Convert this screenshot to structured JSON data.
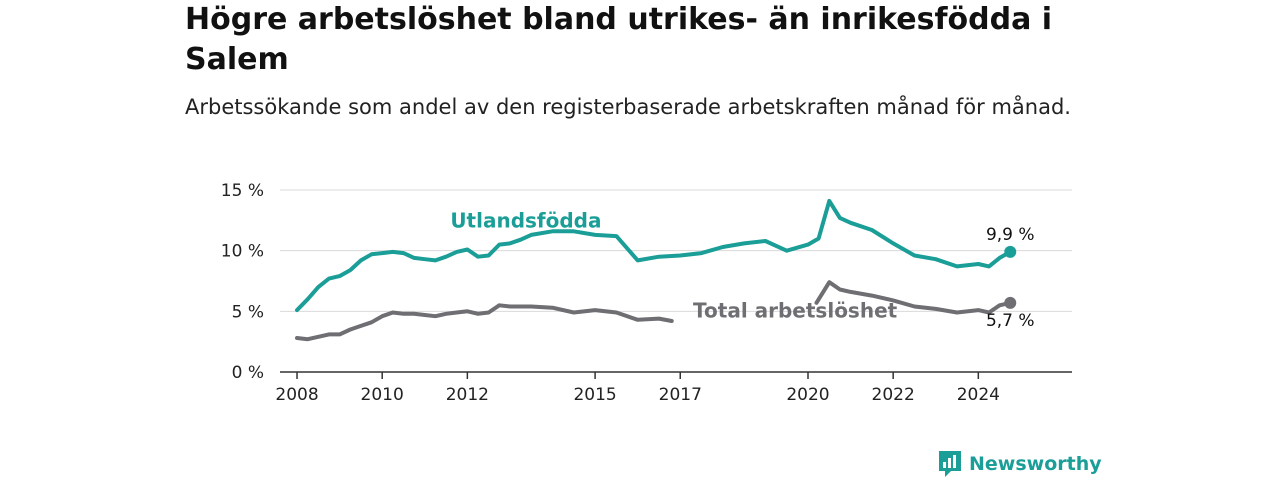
{
  "header": {
    "title": "Högre arbetslöshet bland utrikes- än inrikesfödda i Salem",
    "subtitle": "Arbetssökande som andel av den registerbaserade arbetskraften månad för månad."
  },
  "brand": {
    "name": "Newsworthy",
    "color": "#1a9e97"
  },
  "chart_data": {
    "type": "line",
    "ylim": [
      0,
      15
    ],
    "yticks": [
      0,
      5,
      10,
      15
    ],
    "ytick_labels": [
      "0 %",
      "5 %",
      "10 %",
      "15 %"
    ],
    "xticks": [
      2008,
      2010,
      2012,
      2015,
      2017,
      2020,
      2022,
      2024
    ],
    "xtick_labels": [
      "2008",
      "2010",
      "2012",
      "2015",
      "2017",
      "2020",
      "2022",
      "2024"
    ],
    "grid": true,
    "series": [
      {
        "name": "Utlandsfödda",
        "color": "#1a9e97",
        "end_label": "9,9 %",
        "points": [
          [
            2008.0,
            5.1
          ],
          [
            2008.25,
            6.0
          ],
          [
            2008.5,
            7.0
          ],
          [
            2008.75,
            7.7
          ],
          [
            2009.0,
            7.9
          ],
          [
            2009.25,
            8.4
          ],
          [
            2009.5,
            9.2
          ],
          [
            2009.75,
            9.7
          ],
          [
            2010.0,
            9.8
          ],
          [
            2010.25,
            9.9
          ],
          [
            2010.5,
            9.8
          ],
          [
            2010.75,
            9.4
          ],
          [
            2011.0,
            9.3
          ],
          [
            2011.25,
            9.2
          ],
          [
            2011.5,
            9.5
          ],
          [
            2011.75,
            9.9
          ],
          [
            2012.0,
            10.1
          ],
          [
            2012.25,
            9.5
          ],
          [
            2012.5,
            9.6
          ],
          [
            2012.75,
            10.5
          ],
          [
            2013.0,
            10.6
          ],
          [
            2013.25,
            10.9
          ],
          [
            2013.5,
            11.3
          ],
          [
            2014.0,
            11.6
          ],
          [
            2014.5,
            11.6
          ],
          [
            2015.0,
            11.3
          ],
          [
            2015.5,
            11.2
          ],
          [
            2016.0,
            9.2
          ],
          [
            2016.5,
            9.5
          ],
          [
            2017.0,
            9.6
          ],
          [
            2017.5,
            9.8
          ],
          [
            2018.0,
            10.3
          ],
          [
            2018.5,
            10.6
          ],
          [
            2019.0,
            10.8
          ],
          [
            2019.5,
            10.0
          ],
          [
            2020.0,
            10.5
          ],
          [
            2020.25,
            11.0
          ],
          [
            2020.5,
            14.1
          ],
          [
            2020.75,
            12.7
          ],
          [
            2021.0,
            12.3
          ],
          [
            2021.5,
            11.7
          ],
          [
            2022.0,
            10.6
          ],
          [
            2022.5,
            9.6
          ],
          [
            2023.0,
            9.3
          ],
          [
            2023.5,
            8.7
          ],
          [
            2024.0,
            8.9
          ],
          [
            2024.25,
            8.7
          ],
          [
            2024.5,
            9.4
          ],
          [
            2024.75,
            9.9
          ]
        ]
      },
      {
        "name": "Total arbetslöshet",
        "color": "#6e6e73",
        "end_label": "5,7 %",
        "segments": [
          [
            [
              2008.0,
              2.8
            ],
            [
              2008.25,
              2.7
            ],
            [
              2008.5,
              2.9
            ],
            [
              2008.75,
              3.1
            ],
            [
              2009.0,
              3.1
            ],
            [
              2009.25,
              3.5
            ],
            [
              2009.5,
              3.8
            ],
            [
              2009.75,
              4.1
            ],
            [
              2010.0,
              4.6
            ],
            [
              2010.25,
              4.9
            ],
            [
              2010.5,
              4.8
            ],
            [
              2010.75,
              4.8
            ],
            [
              2011.0,
              4.7
            ],
            [
              2011.25,
              4.6
            ],
            [
              2011.5,
              4.8
            ],
            [
              2011.75,
              4.9
            ],
            [
              2012.0,
              5.0
            ],
            [
              2012.25,
              4.8
            ],
            [
              2012.5,
              4.9
            ],
            [
              2012.75,
              5.5
            ],
            [
              2013.0,
              5.4
            ],
            [
              2013.5,
              5.4
            ],
            [
              2014.0,
              5.3
            ],
            [
              2014.5,
              4.9
            ],
            [
              2015.0,
              5.1
            ],
            [
              2015.5,
              4.9
            ],
            [
              2016.0,
              4.3
            ],
            [
              2016.5,
              4.4
            ],
            [
              2016.8,
              4.2
            ]
          ],
          [
            [
              2020.2,
              5.7
            ],
            [
              2020.5,
              7.4
            ],
            [
              2020.75,
              6.8
            ],
            [
              2021.0,
              6.6
            ],
            [
              2021.5,
              6.3
            ],
            [
              2022.0,
              5.9
            ],
            [
              2022.5,
              5.4
            ],
            [
              2023.0,
              5.2
            ],
            [
              2023.5,
              4.9
            ],
            [
              2024.0,
              5.1
            ],
            [
              2024.25,
              4.9
            ],
            [
              2024.5,
              5.5
            ],
            [
              2024.75,
              5.7
            ]
          ]
        ]
      }
    ],
    "annotations": [
      {
        "text": "Utlandsfödda",
        "series": 0
      },
      {
        "text": "Total arbetslöshet",
        "series": 1
      }
    ]
  }
}
